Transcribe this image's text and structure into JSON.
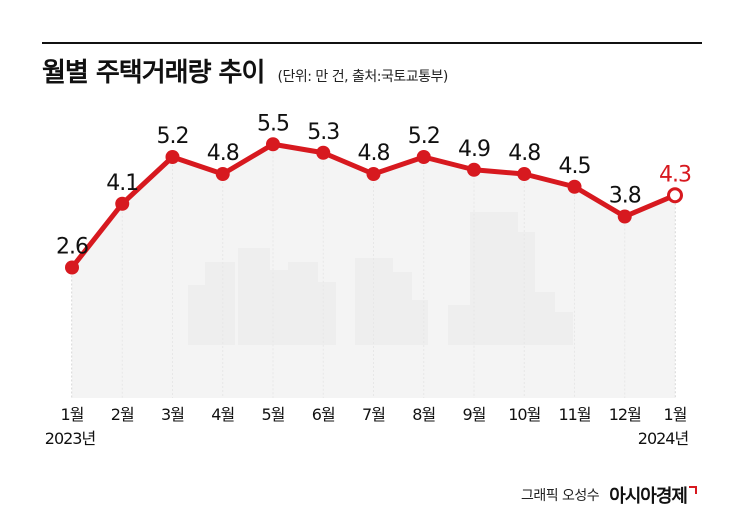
{
  "header": {
    "title": "월별 주택거래량 추이",
    "unit_source": "(단위: 만 건, 출처:국토교통부)"
  },
  "footer": {
    "credit": "그래픽 오성수",
    "brand": "아시아경제"
  },
  "colors": {
    "line": "#d7191f",
    "grid": "#bdbdbd",
    "silhouette": "#e2e2e2"
  },
  "chart_data": {
    "type": "line",
    "title": "월별 주택거래량 추이",
    "unit": "만 건",
    "categories": [
      "1월",
      "2월",
      "3월",
      "4월",
      "5월",
      "6월",
      "7월",
      "8월",
      "9월",
      "10월",
      "11월",
      "12월",
      "1월"
    ],
    "year_labels": [
      "2023년",
      "",
      "",
      "",
      "",
      "",
      "",
      "",
      "",
      "",
      "",
      "",
      "2024년"
    ],
    "series": [
      {
        "values": [
          2.6,
          4.1,
          5.2,
          4.8,
          5.5,
          5.3,
          4.8,
          5.2,
          4.9,
          4.8,
          4.5,
          3.8,
          4.3
        ],
        "value_labels": [
          "2.6",
          "4.1",
          "5.2",
          "4.8",
          "5.5",
          "5.3",
          "4.8",
          "5.2",
          "4.9",
          "4.8",
          "4.5",
          "3.8",
          "4.3"
        ]
      }
    ],
    "highlight_last_point": true,
    "y_axis_shown": false,
    "grid": "vertical dashed lines per month"
  }
}
